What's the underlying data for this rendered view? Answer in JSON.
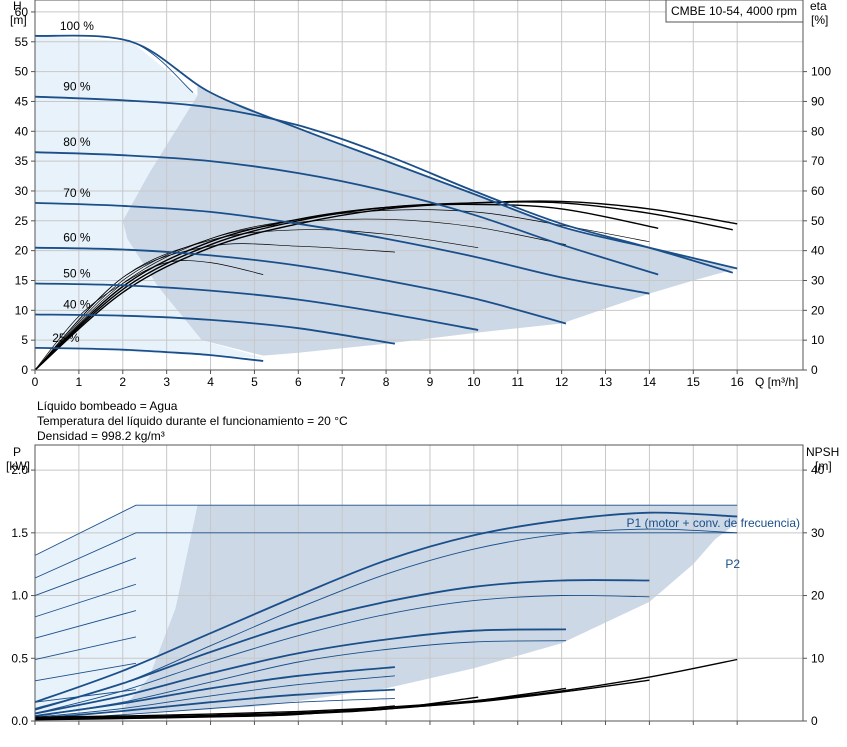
{
  "chart_data": [
    {
      "type": "line",
      "model_box": "CMBE 10-54, 4000 rpm",
      "y_left_label": [
        "H",
        "[m]"
      ],
      "y_right_label": [
        "eta",
        "[%]"
      ],
      "x_label": "Q [m³/h]",
      "xlim": [
        0,
        17.5
      ],
      "ylim_left": [
        0,
        62
      ],
      "ylim_right": [
        0,
        124
      ],
      "x_ticks": [
        0,
        1,
        2,
        3,
        4,
        5,
        6,
        7,
        8,
        9,
        10,
        11,
        12,
        13,
        14,
        15,
        16
      ],
      "y_left_ticks": [
        0,
        5,
        10,
        15,
        20,
        25,
        30,
        35,
        40,
        45,
        50,
        55,
        60
      ],
      "y_right_ticks": [
        0,
        10,
        20,
        30,
        40,
        50,
        60,
        70,
        80,
        90,
        100
      ],
      "grid": true,
      "speed_labels": [
        "100 %",
        "90 %",
        "80 %",
        "70 %",
        "60 %",
        "50 %",
        "40 %",
        "25 %"
      ],
      "series": [
        {
          "label": "100 %",
          "x": [
            0,
            2.2,
            4,
            6,
            8,
            10,
            12,
            14,
            16
          ],
          "y": [
            56,
            55,
            46.5,
            40.5,
            35,
            29.5,
            24,
            20.5,
            17
          ]
        },
        {
          "label": "90 %",
          "x": [
            0,
            2,
            4,
            6,
            8,
            10,
            12,
            14,
            15.9
          ],
          "y": [
            45.8,
            45.2,
            44,
            41,
            36,
            30,
            24.5,
            20.5,
            16.3
          ]
        },
        {
          "label": "80 %",
          "x": [
            0,
            2,
            4,
            6,
            8,
            10,
            12,
            14.2
          ],
          "y": [
            36.5,
            36,
            35,
            33,
            30,
            26,
            21,
            16
          ]
        },
        {
          "label": "70 %",
          "x": [
            0,
            2,
            4,
            6,
            8,
            10,
            12,
            14
          ],
          "y": [
            28,
            27.5,
            26.5,
            24.5,
            22,
            19,
            15.5,
            12.8
          ]
        },
        {
          "label": "60 %",
          "x": [
            0,
            2,
            4,
            6,
            8,
            10,
            12.1
          ],
          "y": [
            20.5,
            20.2,
            19.2,
            17.5,
            15,
            12,
            7.8
          ]
        },
        {
          "label": "50 %",
          "x": [
            0,
            2,
            4,
            6,
            8,
            10.1
          ],
          "y": [
            14.5,
            14.2,
            13.3,
            11.8,
            9.5,
            6.7
          ]
        },
        {
          "label": "40 %",
          "x": [
            0,
            2,
            4,
            6,
            8.2
          ],
          "y": [
            9.3,
            9.1,
            8.4,
            7,
            4.4
          ]
        },
        {
          "label": "25 %",
          "x": [
            0,
            1,
            2,
            3,
            4,
            5.2
          ],
          "y": [
            3.7,
            3.6,
            3.4,
            3,
            2.5,
            1.5
          ]
        }
      ],
      "efficiency_curves": [
        {
          "label": "100 %",
          "x": [
            0,
            2,
            4,
            6,
            8,
            10,
            12,
            14,
            16
          ],
          "eta": [
            0,
            26,
            41,
            49,
            54,
            56,
            56.5,
            54,
            49
          ]
        },
        {
          "label": "90 %",
          "x": [
            0,
            2,
            4,
            6,
            8,
            10,
            12,
            14,
            15.9
          ],
          "eta": [
            0,
            27,
            42,
            50,
            54.5,
            56,
            56,
            52.5,
            47
          ]
        },
        {
          "label": "80 %",
          "x": [
            0,
            2,
            4,
            6,
            8,
            10,
            12,
            14.2
          ],
          "eta": [
            0,
            28,
            43,
            50.5,
            54.5,
            55.5,
            54,
            47.5
          ]
        },
        {
          "label": "70 %",
          "x": [
            0,
            2,
            4,
            6,
            8,
            10,
            12,
            14
          ],
          "eta": [
            0,
            29,
            44,
            50.5,
            53.5,
            53,
            48.5,
            43
          ]
        },
        {
          "label": "60 %",
          "x": [
            0,
            2,
            4,
            6,
            8,
            10,
            12.1
          ],
          "eta": [
            0,
            30,
            44,
            49.5,
            50.5,
            48,
            42
          ]
        },
        {
          "label": "50 %",
          "x": [
            0,
            2,
            4,
            6,
            8,
            10.1
          ],
          "eta": [
            0,
            31,
            43.5,
            47,
            45.5,
            41
          ]
        },
        {
          "label": "40 %",
          "x": [
            0,
            2,
            4,
            6,
            8.2
          ],
          "eta": [
            0,
            31,
            41.5,
            41.5,
            39.5
          ]
        },
        {
          "label": "25 %",
          "x": [
            0,
            1,
            2,
            3,
            4,
            5.2
          ],
          "eta": [
            0,
            18,
            29,
            36,
            36,
            32
          ]
        }
      ]
    },
    {
      "type": "line",
      "y_left_label": [
        "P",
        "[kW]"
      ],
      "y_right_label": [
        "NPSH",
        "[m]"
      ],
      "xlim": [
        0,
        17.5
      ],
      "ylim_left": [
        0,
        2.2
      ],
      "ylim_right": [
        0,
        44
      ],
      "y_left_ticks": [
        0.0,
        0.5,
        1.0,
        1.5,
        2.0
      ],
      "y_left_tick_labels": [
        "0.0",
        "0.5",
        "1.0",
        "1.5",
        "2.0"
      ],
      "y_right_ticks": [
        0,
        10,
        20,
        30,
        40
      ],
      "grid": true,
      "series_labels": [
        "P1 (motor + conv. de frecuencia)",
        "P2"
      ],
      "series": [
        {
          "label": "P1 100 %",
          "x": [
            0,
            2,
            4,
            6,
            8,
            10,
            12,
            14,
            16
          ],
          "y": [
            0.15,
            0.4,
            0.7,
            1.0,
            1.28,
            1.48,
            1.6,
            1.66,
            1.63
          ]
        },
        {
          "label": "P2 100 %",
          "x": [
            0,
            2,
            4,
            6,
            8,
            10,
            12,
            14,
            16
          ],
          "y": [
            0.1,
            0.3,
            0.6,
            0.9,
            1.17,
            1.37,
            1.49,
            1.53,
            1.5
          ]
        },
        {
          "label": "P1 80 %",
          "x": [
            0,
            2,
            4,
            6,
            8,
            10,
            12,
            14
          ],
          "y": [
            0.09,
            0.3,
            0.55,
            0.78,
            0.95,
            1.07,
            1.12,
            1.12
          ]
        },
        {
          "label": "P2 80 %",
          "x": [
            0,
            2,
            4,
            6,
            8,
            10,
            12,
            14
          ],
          "y": [
            0.06,
            0.24,
            0.47,
            0.68,
            0.85,
            0.96,
            1.0,
            0.99
          ]
        },
        {
          "label": "P1 60 %",
          "x": [
            0,
            2,
            4,
            6,
            8,
            10,
            12.1
          ],
          "y": [
            0.06,
            0.2,
            0.38,
            0.54,
            0.65,
            0.72,
            0.73
          ]
        },
        {
          "label": "P2 60 %",
          "x": [
            0,
            2,
            4,
            6,
            8,
            10,
            12.1
          ],
          "y": [
            0.04,
            0.15,
            0.31,
            0.47,
            0.57,
            0.63,
            0.64
          ]
        },
        {
          "label": "P1 40 %",
          "x": [
            0,
            2,
            4,
            6,
            8.2
          ],
          "y": [
            0.04,
            0.14,
            0.26,
            0.36,
            0.43
          ]
        },
        {
          "label": "P2 40 %",
          "x": [
            0,
            2,
            4,
            6,
            8.2
          ],
          "y": [
            0.03,
            0.1,
            0.2,
            0.29,
            0.36
          ]
        },
        {
          "label": "P1 25 %",
          "x": [
            0,
            2,
            4,
            6,
            8.2
          ],
          "y": [
            0.02,
            0.08,
            0.15,
            0.21,
            0.25
          ]
        },
        {
          "label": "P2 25 %",
          "x": [
            0,
            2,
            4,
            6,
            8.2
          ],
          "y": [
            0.01,
            0.05,
            0.1,
            0.15,
            0.18
          ]
        }
      ],
      "npsh_curves": [
        {
          "x": [
            0,
            2,
            4,
            6,
            8,
            10,
            12,
            14,
            16
          ],
          "y": [
            0.6,
            0.8,
            1.1,
            1.5,
            2.2,
            3.2,
            4.8,
            7,
            9.8
          ]
        },
        {
          "x": [
            0,
            2,
            4,
            6,
            8,
            10,
            12,
            14
          ],
          "y": [
            0.4,
            0.6,
            0.9,
            1.3,
            2,
            3,
            4.6,
            6.5
          ]
        },
        {
          "x": [
            0,
            2,
            4,
            6,
            8,
            10,
            12.1
          ],
          "y": [
            0.3,
            0.5,
            0.8,
            1.2,
            1.9,
            3.2,
            5.2
          ]
        },
        {
          "x": [
            0,
            2,
            4,
            6,
            8,
            10.1
          ],
          "y": [
            0.25,
            0.45,
            0.7,
            1.1,
            1.9,
            3.8
          ]
        },
        {
          "x": [
            0,
            2,
            4,
            6,
            8.2
          ],
          "y": [
            0.2,
            0.4,
            0.65,
            1.05,
            2.4
          ]
        }
      ]
    }
  ],
  "info_text": {
    "line1": "Líquido bombeado = Agua",
    "line2": "Temperatura del líquido durante el funcionamiento = 20 °C",
    "line3": "Densidad = 998.2 kg/m³"
  }
}
